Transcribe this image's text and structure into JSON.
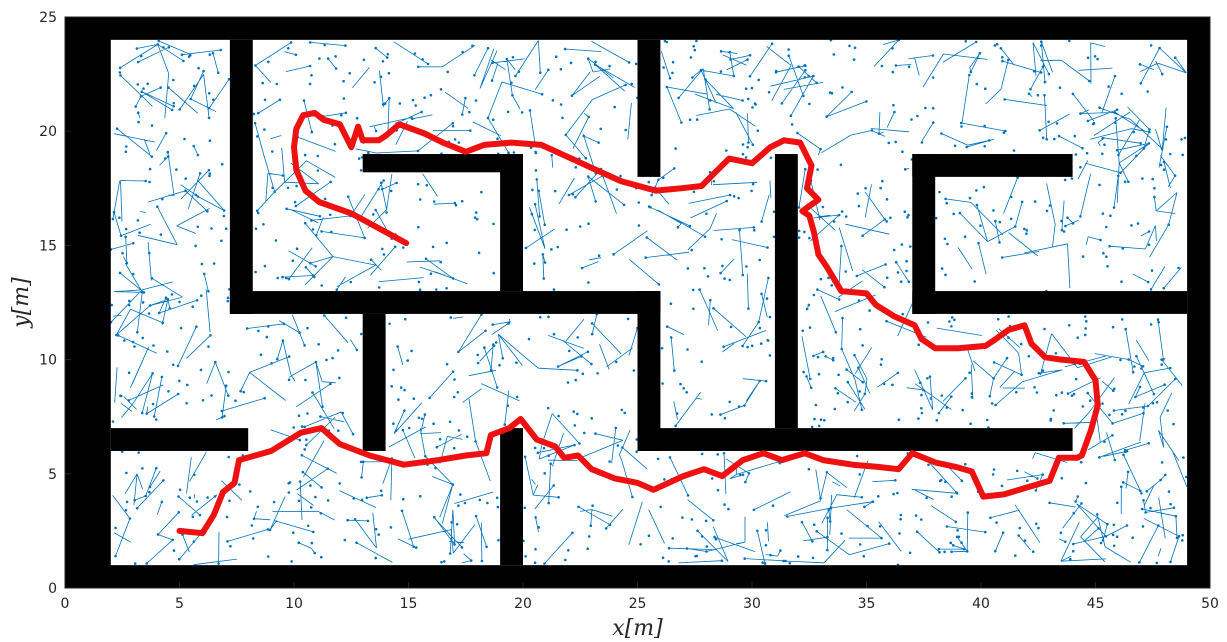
{
  "chart_data": {
    "type": "scatter",
    "title": "",
    "xlabel": "x[m]",
    "ylabel": "y[m]",
    "xlim": [
      0,
      50
    ],
    "ylim": [
      0,
      25
    ],
    "xticks": [
      0,
      5,
      10,
      15,
      20,
      25,
      30,
      35,
      40,
      45,
      50
    ],
    "yticks": [
      0,
      5,
      10,
      15,
      20,
      25
    ],
    "grid": false,
    "legend": "none",
    "colors": {
      "tree": "#0072BD",
      "path": "#EE1111",
      "obstacle": "#000000"
    },
    "obstacles": [
      {
        "x1": 0,
        "y1": 0,
        "x2": 2,
        "y2": 25
      },
      {
        "x1": 0,
        "y1": 24,
        "x2": 50,
        "y2": 25
      },
      {
        "x1": 49,
        "y1": 0,
        "x2": 50,
        "y2": 25
      },
      {
        "x1": 0,
        "y1": 0,
        "x2": 50,
        "y2": 1
      },
      {
        "x1": 7.2,
        "y1": 12,
        "x2": 8.2,
        "y2": 24
      },
      {
        "x1": 7.2,
        "y1": 12,
        "x2": 26,
        "y2": 13
      },
      {
        "x1": 13,
        "y1": 18.2,
        "x2": 20,
        "y2": 19
      },
      {
        "x1": 19,
        "y1": 13,
        "x2": 20,
        "y2": 19
      },
      {
        "x1": 25,
        "y1": 18,
        "x2": 26,
        "y2": 24
      },
      {
        "x1": 25,
        "y1": 6,
        "x2": 26,
        "y2": 13
      },
      {
        "x1": 25,
        "y1": 6,
        "x2": 44,
        "y2": 7
      },
      {
        "x1": 31,
        "y1": 7,
        "x2": 32,
        "y2": 19
      },
      {
        "x1": 13,
        "y1": 6,
        "x2": 14,
        "y2": 12
      },
      {
        "x1": 2,
        "y1": 6,
        "x2": 8,
        "y2": 7
      },
      {
        "x1": 19,
        "y1": 1,
        "x2": 20,
        "y2": 7
      },
      {
        "x1": 37,
        "y1": 12,
        "x2": 38,
        "y2": 19
      },
      {
        "x1": 37,
        "y1": 18,
        "x2": 44,
        "y2": 19
      },
      {
        "x1": 37,
        "y1": 12,
        "x2": 49,
        "y2": 13
      }
    ],
    "path": [
      [
        5,
        2.5
      ],
      [
        6,
        2.4
      ],
      [
        6.5,
        3.2
      ],
      [
        6.9,
        4.2
      ],
      [
        7.4,
        4.6
      ],
      [
        7.6,
        5.6
      ],
      [
        9,
        6
      ],
      [
        10.3,
        6.8
      ],
      [
        11.2,
        7
      ],
      [
        12,
        6.3
      ],
      [
        13.3,
        5.8
      ],
      [
        14.8,
        5.4
      ],
      [
        16.3,
        5.6
      ],
      [
        17.5,
        5.8
      ],
      [
        18.4,
        5.9
      ],
      [
        18.6,
        6.7
      ],
      [
        19.4,
        7
      ],
      [
        19.9,
        7.4
      ],
      [
        20.6,
        6.5
      ],
      [
        21.4,
        6.2
      ],
      [
        21.8,
        5.7
      ],
      [
        22.4,
        5.8
      ],
      [
        23,
        5.2
      ],
      [
        24,
        4.8
      ],
      [
        25,
        4.6
      ],
      [
        25.7,
        4.3
      ],
      [
        27,
        4.9
      ],
      [
        27.9,
        5.2
      ],
      [
        28.7,
        4.9
      ],
      [
        29.6,
        5.6
      ],
      [
        30.5,
        5.9
      ],
      [
        31.3,
        5.6
      ],
      [
        32.3,
        5.9
      ],
      [
        33.1,
        5.6
      ],
      [
        34.4,
        5.4
      ],
      [
        35.5,
        5.3
      ],
      [
        36.4,
        5.2
      ],
      [
        37,
        5.9
      ],
      [
        38,
        5.5
      ],
      [
        38.9,
        5.3
      ],
      [
        39.6,
        5.1
      ],
      [
        40.1,
        4
      ],
      [
        41,
        4.1
      ],
      [
        42,
        4.4
      ],
      [
        43,
        4.7
      ],
      [
        43.4,
        5.7
      ],
      [
        44.2,
        5.7
      ],
      [
        44.4,
        5.8
      ],
      [
        44.8,
        6.9
      ],
      [
        45.1,
        8
      ],
      [
        45,
        9.1
      ],
      [
        44.5,
        9.9
      ],
      [
        43.5,
        10
      ],
      [
        42.8,
        10.1
      ],
      [
        42.2,
        10.7
      ],
      [
        41.9,
        11.5
      ],
      [
        41.2,
        11.3
      ],
      [
        40.5,
        10.8
      ],
      [
        40.2,
        10.6
      ],
      [
        39,
        10.5
      ],
      [
        38,
        10.5
      ],
      [
        37.4,
        10.9
      ],
      [
        37.1,
        11.5
      ],
      [
        36.2,
        11.9
      ],
      [
        35.4,
        12.4
      ],
      [
        35,
        12.9
      ],
      [
        33.9,
        13
      ],
      [
        33.3,
        14
      ],
      [
        32.9,
        14.6
      ],
      [
        32.7,
        15.6
      ],
      [
        32.5,
        16.3
      ],
      [
        32.2,
        16.5
      ],
      [
        32.9,
        17
      ],
      [
        32.4,
        17.5
      ],
      [
        32.6,
        18.5
      ],
      [
        32.1,
        19.5
      ],
      [
        31.4,
        19.6
      ],
      [
        30.8,
        19.3
      ],
      [
        30,
        18.6
      ],
      [
        29,
        18.8
      ],
      [
        28.5,
        18.3
      ],
      [
        27.8,
        17.6
      ],
      [
        26.9,
        17.5
      ],
      [
        25.8,
        17.4
      ],
      [
        24.3,
        17.8
      ],
      [
        23.2,
        18.3
      ],
      [
        21.9,
        18.9
      ],
      [
        20.8,
        19.4
      ],
      [
        19.5,
        19.5
      ],
      [
        18.3,
        19.4
      ],
      [
        17.5,
        19.1
      ],
      [
        16.5,
        19.5
      ],
      [
        15.7,
        19.9
      ],
      [
        14.6,
        20.3
      ],
      [
        14,
        19.8
      ],
      [
        13.7,
        19.6
      ],
      [
        13,
        19.6
      ],
      [
        12.8,
        20.2
      ],
      [
        12.5,
        19.3
      ],
      [
        12,
        20.3
      ],
      [
        11.3,
        20.5
      ],
      [
        10.9,
        20.8
      ],
      [
        10.4,
        20.7
      ],
      [
        10.1,
        20.1
      ],
      [
        10,
        19.3
      ],
      [
        10.1,
        18.3
      ],
      [
        10.5,
        17.4
      ],
      [
        11.1,
        16.9
      ],
      [
        12.5,
        16.4
      ],
      [
        14.9,
        15.1
      ]
    ]
  }
}
